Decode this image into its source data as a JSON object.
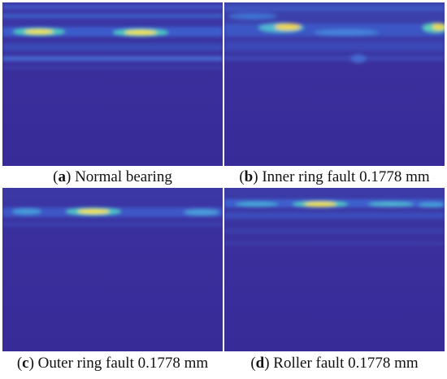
{
  "panels": [
    {
      "id": "a",
      "letter": "a",
      "label": "Normal bearing"
    },
    {
      "id": "b",
      "letter": "b",
      "label": "Inner ring fault 0.1778 mm"
    },
    {
      "id": "c",
      "letter": "c",
      "label": "Outer ring fault 0.1778 mm"
    },
    {
      "id": "d",
      "letter": "d",
      "label": "Roller fault 0.1778 mm"
    }
  ],
  "colors": {
    "background": "#3a2f9c",
    "band_blue": "#3f6fe0",
    "band_cyan": "#29c1c8",
    "hot_yellow": "#f4e64a"
  }
}
